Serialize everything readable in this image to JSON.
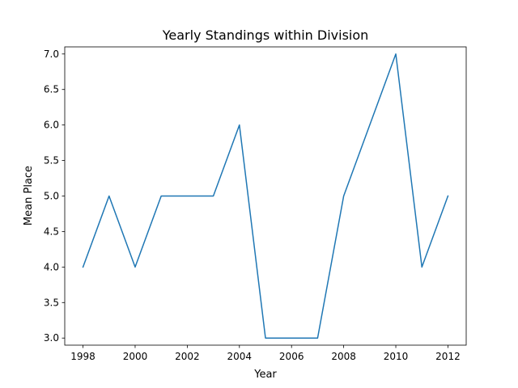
{
  "chart_data": {
    "type": "line",
    "title": "Yearly Standings within Division",
    "xlabel": "Year",
    "ylabel": "Mean Place",
    "x": [
      1998,
      1999,
      2000,
      2001,
      2002,
      2003,
      2004,
      2005,
      2006,
      2007,
      2008,
      2009,
      2010,
      2011,
      2012
    ],
    "series": [
      {
        "values": [
          4,
          5,
          4,
          5,
          5,
          5,
          6,
          3,
          3,
          3,
          5,
          6,
          7,
          4,
          5
        ]
      }
    ],
    "xticks": [
      "1998",
      "2000",
      "2002",
      "2004",
      "2006",
      "2008",
      "2010",
      "2012"
    ],
    "yticks": [
      "3.0",
      "3.5",
      "4.0",
      "4.5",
      "5.0",
      "5.5",
      "6.0",
      "6.5",
      "7.0"
    ],
    "xlim": [
      1997.3,
      2012.7
    ],
    "ylim": [
      2.9,
      7.1
    ],
    "grid": false,
    "line_color": "#1f77b4"
  }
}
